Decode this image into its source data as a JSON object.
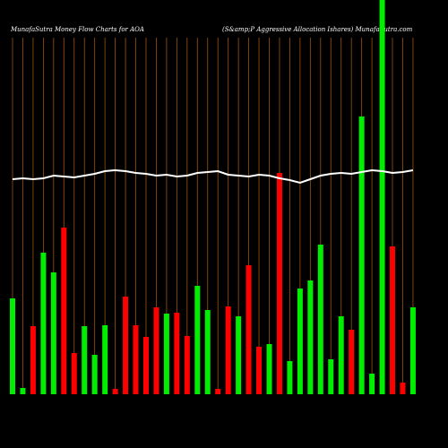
{
  "chart_data": {
    "type": "bar",
    "title": "MunafaSutra  Money Flow  Charts for AOA",
    "subtitle": "(S&amp;P Aggressive   Allocation  Ishares) MunafaSutra.com",
    "ylim": [
      0,
      440
    ],
    "series": [
      {
        "type": "bar",
        "values": [
          107,
          7,
          76,
          158,
          136,
          186,
          46,
          76,
          44,
          77,
          6,
          109,
          77,
          64,
          97,
          90,
          91,
          65,
          121,
          94,
          6,
          98,
          87,
          144,
          53,
          56,
          247,
          37,
          118,
          127,
          167,
          39,
          87,
          72,
          310,
          23,
          460,
          165,
          13,
          97
        ],
        "colors": [
          "#00ee00",
          "#00ee00",
          "#ff0000",
          "#00ee00",
          "#00ee00",
          "#ff0000",
          "#ff0000",
          "#00ee00",
          "#00ee00",
          "#00ee00",
          "#ff0000",
          "#ff0000",
          "#ff0000",
          "#ff0000",
          "#ff0000",
          "#00ee00",
          "#ff0000",
          "#ff0000",
          "#00ee00",
          "#00ee00",
          "#ff0000",
          "#ff0000",
          "#00ee00",
          "#ff0000",
          "#ff0000",
          "#00ee00",
          "#ff0000",
          "#00ee00",
          "#00ee00",
          "#00ee00",
          "#00ee00",
          "#00ee00",
          "#00ee00",
          "#ff0000",
          "#00ee00",
          "#00ee00",
          "#00ee00",
          "#ff0000",
          "#ff0000",
          "#00ee00"
        ]
      },
      {
        "type": "line",
        "color": "#ffffff",
        "values": [
          240,
          241,
          240,
          241,
          244,
          243,
          242,
          244,
          246,
          249,
          250,
          249,
          247,
          246,
          244,
          245,
          243,
          244,
          247,
          248,
          249,
          245,
          244,
          243,
          245,
          244,
          241,
          239,
          236,
          240,
          244,
          246,
          247,
          246,
          248,
          250,
          249,
          247,
          248,
          250
        ]
      }
    ]
  }
}
